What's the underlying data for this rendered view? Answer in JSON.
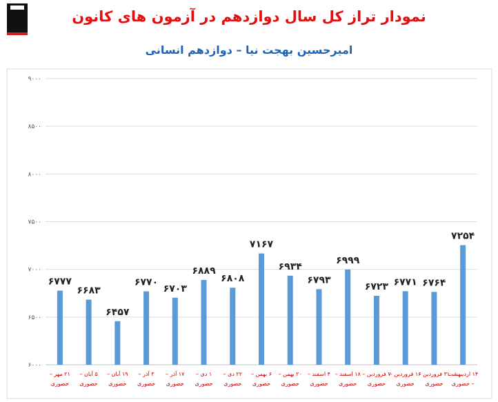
{
  "logo": {
    "text": ""
  },
  "chart_data": {
    "type": "bar",
    "title": "نمودار تراز کل سال دوازدهم در آزمون های کانون",
    "subtitle": "امیرحسین بهجت نیا – دوازدهم انسانی",
    "ylim": [
      6000,
      9000
    ],
    "yticks": [
      6000,
      6500,
      7000,
      7500,
      8000,
      8500,
      9000
    ],
    "ytick_labels": [
      "۶۰۰۰",
      "۶۵۰۰",
      "۷۰۰۰",
      "۷۵۰۰",
      "۸۰۰۰",
      "۸۵۰۰",
      "۹۰۰۰"
    ],
    "grid": true,
    "bar_color": "#5b9bd5",
    "categories": [
      [
        "۲۱ مهر –",
        "حضوری"
      ],
      [
        "۵ آبان –",
        "حضوری"
      ],
      [
        "۱۹ آبان –",
        "حضوری"
      ],
      [
        "۳ آذر –",
        "حضوری"
      ],
      [
        "۱۷ آذر –",
        "حضوری"
      ],
      [
        "۱ دی –",
        "حضوری"
      ],
      [
        "۲۲ دی –",
        "حضوری"
      ],
      [
        "۶ بهمن –",
        "حضوری"
      ],
      [
        "۲۰ بهمن –",
        "حضوری"
      ],
      [
        "۴ اسفند –",
        "حضوری"
      ],
      [
        "۱۸ اسفند –",
        "حضوری"
      ],
      [
        "۷ فروردین –",
        "حضوری"
      ],
      [
        "۱۶ فروردین –",
        "حضوری"
      ],
      [
        "۳۱ فروردین –",
        "حضوری"
      ],
      [
        "۱۴ اردیبهشت",
        "– حضوری"
      ]
    ],
    "values": [
      6777,
      6683,
      6457,
      6770,
      6703,
      6889,
      6808,
      7167,
      6934,
      6793,
      6999,
      6723,
      6771,
      6764,
      7254
    ],
    "value_labels": [
      "۶۷۷۷",
      "۶۶۸۳",
      "۶۴۵۷",
      "۶۷۷۰",
      "۶۷۰۳",
      "۶۸۸۹",
      "۶۸۰۸",
      "۷۱۶۷",
      "۶۹۳۴",
      "۶۷۹۳",
      "۶۹۹۹",
      "۶۷۲۳",
      "۶۷۷۱",
      "۶۷۶۴",
      "۷۲۵۴"
    ]
  }
}
